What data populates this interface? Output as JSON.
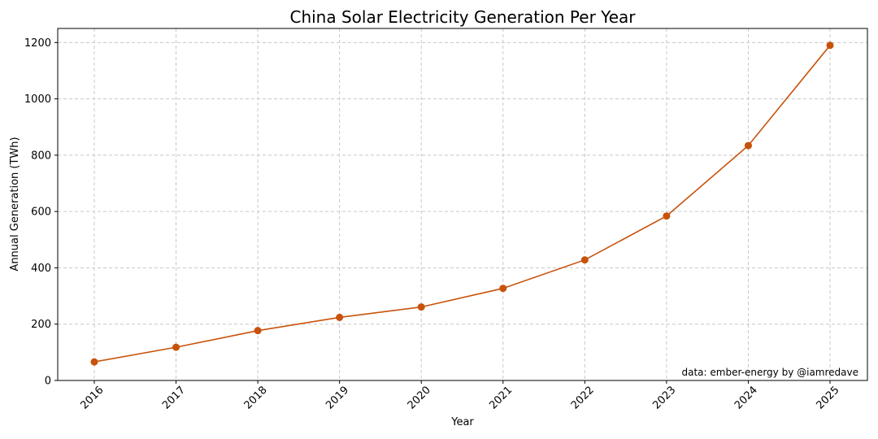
{
  "chart_data": {
    "type": "line",
    "title": "China Solar Electricity Generation Per Year",
    "xlabel": "Year",
    "ylabel": "Annual Generation (TWh)",
    "x": [
      "2016",
      "2017",
      "2018",
      "2019",
      "2020",
      "2021",
      "2022",
      "2023",
      "2024",
      "2025"
    ],
    "series": [
      {
        "values": [
          66,
          118,
          177,
          224,
          261,
          327,
          428,
          584,
          834,
          1190
        ],
        "color": "#c8520a"
      }
    ],
    "ylim": [
      0,
      1250
    ],
    "yticks": [
      0,
      200,
      400,
      600,
      800,
      1000,
      1200
    ],
    "grid": true,
    "annotation": "data: ember-energy by @iamredave"
  }
}
